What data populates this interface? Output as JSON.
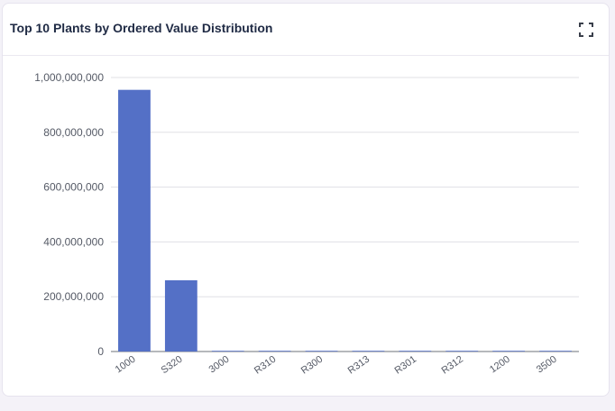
{
  "card": {
    "title": "Top 10 Plants by Ordered Value Distribution",
    "expand_icon": "fullscreen-icon"
  },
  "colors": {
    "bar": "#5470c6",
    "grid": "#e0e0e6",
    "axis": "#6e7079"
  },
  "chart_data": {
    "type": "bar",
    "title": "Top 10 Plants by Ordered Value Distribution",
    "xlabel": "",
    "ylabel": "",
    "categories": [
      "1000",
      "S320",
      "3000",
      "R310",
      "R300",
      "R313",
      "R301",
      "R312",
      "1200",
      "3500"
    ],
    "values": [
      955000000,
      260000000,
      2500000,
      1200000,
      900000,
      1000000,
      400000,
      600000,
      500000,
      300000
    ],
    "ylim": [
      0,
      1000000000
    ],
    "yticks": [
      0,
      200000000,
      400000000,
      600000000,
      800000000,
      1000000000
    ],
    "ytick_labels": [
      "0",
      "200,000,000",
      "400,000,000",
      "600,000,000",
      "800,000,000",
      "1,000,000,000"
    ],
    "grid": true,
    "legend": "none"
  }
}
